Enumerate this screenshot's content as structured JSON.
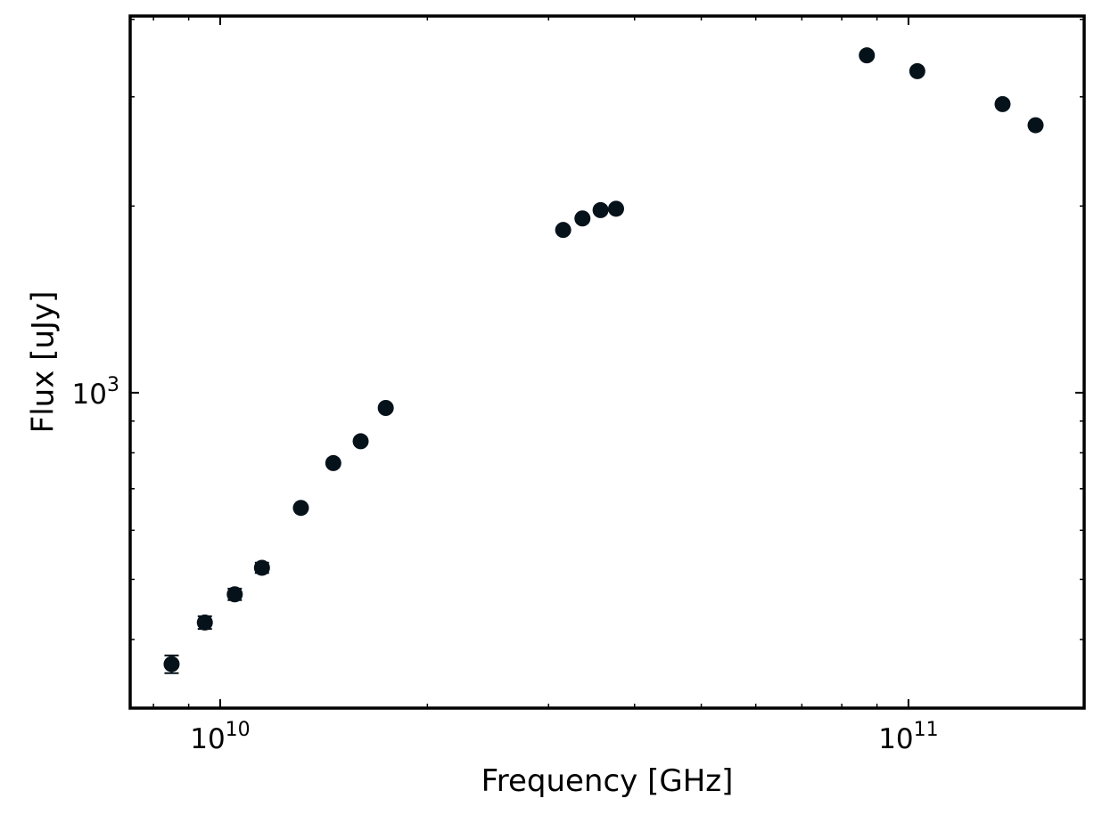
{
  "chart_data": {
    "type": "scatter",
    "xlabel": "Frequency [GHz]",
    "ylabel": "Flux [uJy]",
    "xscale": "log",
    "yscale": "log",
    "xlim": [
      7400000000.0,
      180000000000.0
    ],
    "ylim": [
      310,
      4050
    ],
    "x_ticks": [
      {
        "value": 10000000000.0,
        "base": "10",
        "exp": "10"
      },
      {
        "value": 100000000000.0,
        "base": "10",
        "exp": "11"
      }
    ],
    "y_ticks": [
      {
        "value": 1000,
        "base": "10",
        "exp": "3"
      }
    ],
    "grid": false,
    "marker_color": "#06121a",
    "series": [
      {
        "points": [
          {
            "x": 8500000000.0,
            "y": 365,
            "err": 12
          },
          {
            "x": 9500000000.0,
            "y": 426,
            "err": 10
          },
          {
            "x": 10500000000.0,
            "y": 473,
            "err": 10
          },
          {
            "x": 11500000000.0,
            "y": 522,
            "err": 10
          },
          {
            "x": 13100000000.0,
            "y": 652,
            "err": 8
          },
          {
            "x": 14600000000.0,
            "y": 770,
            "err": 8
          },
          {
            "x": 16000000000.0,
            "y": 835,
            "err": 8
          },
          {
            "x": 17400000000.0,
            "y": 945,
            "err": 8
          },
          {
            "x": 31500000000.0,
            "y": 1830,
            "err": 10
          },
          {
            "x": 33600000000.0,
            "y": 1910,
            "err": 10
          },
          {
            "x": 35700000000.0,
            "y": 1970,
            "err": 10
          },
          {
            "x": 37600000000.0,
            "y": 1980,
            "err": 10
          },
          {
            "x": 87000000000.0,
            "y": 3500,
            "err": 12
          },
          {
            "x": 103000000000.0,
            "y": 3300,
            "err": 12
          },
          {
            "x": 137000000000.0,
            "y": 2920,
            "err": 12
          },
          {
            "x": 153000000000.0,
            "y": 2700,
            "err": 12
          }
        ]
      }
    ]
  }
}
